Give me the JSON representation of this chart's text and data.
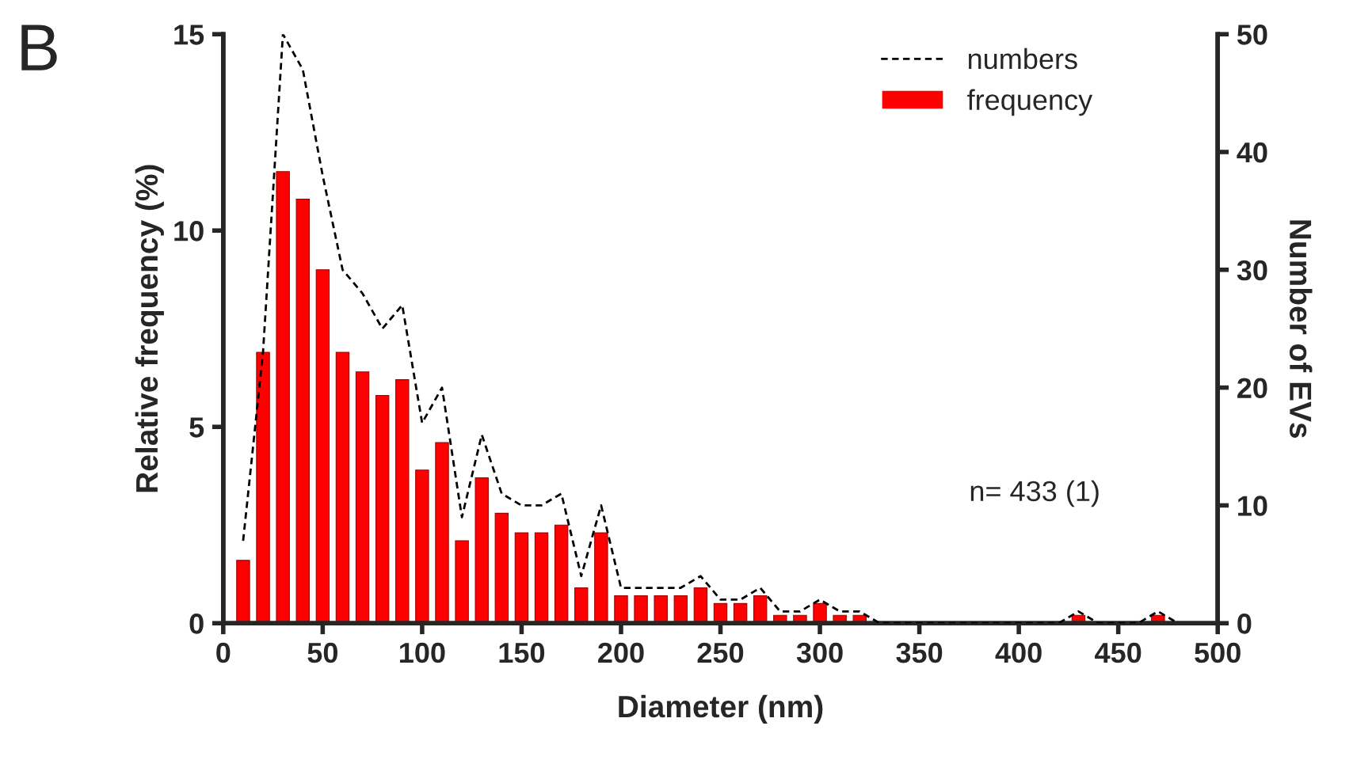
{
  "chart_data": {
    "type": "bar",
    "xlabel": "Diameter (nm)",
    "ylabel": "Relative frequency (%)",
    "y2label": "Number of EVs",
    "annotations": [
      "B",
      "n= 433 (1)"
    ],
    "series": [
      {
        "name": "frequency",
        "color": "#ff0000",
        "x": [
          10,
          20,
          30,
          40,
          50,
          60,
          70,
          80,
          90,
          100,
          110,
          120,
          130,
          140,
          150,
          160,
          170,
          180,
          190,
          200,
          210,
          220,
          230,
          240,
          250,
          260,
          270,
          280,
          290,
          300,
          310,
          320,
          430,
          470
        ],
        "values": [
          1.6,
          6.9,
          11.5,
          10.8,
          9.0,
          6.9,
          6.4,
          5.8,
          6.2,
          3.9,
          4.6,
          2.1,
          3.7,
          2.8,
          2.3,
          2.3,
          2.5,
          0.9,
          2.3,
          0.7,
          0.7,
          0.7,
          0.7,
          0.9,
          0.5,
          0.5,
          0.7,
          0.2,
          0.2,
          0.5,
          0.2,
          0.2,
          0.2,
          0.2
        ]
      },
      {
        "name": "numbers",
        "type": "line",
        "axis": "y2",
        "color": "#000000",
        "line_style": "dashed",
        "x": [
          10,
          20,
          30,
          40,
          50,
          60,
          70,
          80,
          90,
          100,
          110,
          120,
          130,
          140,
          150,
          160,
          170,
          180,
          190,
          200,
          210,
          220,
          230,
          240,
          250,
          260,
          270,
          280,
          290,
          300,
          310,
          320,
          330,
          420,
          430,
          440,
          460,
          470,
          480
        ],
        "values": [
          7,
          23,
          50,
          47,
          38,
          30,
          28,
          25,
          27,
          17,
          20,
          9,
          16,
          11,
          10,
          10,
          11,
          4,
          10,
          3,
          3,
          3,
          3,
          4,
          2,
          2,
          3,
          1,
          1,
          2,
          1,
          1,
          0,
          0,
          1,
          0,
          0,
          1,
          0
        ]
      }
    ],
    "xlim": [
      0,
      500
    ],
    "xticks": [
      0,
      50,
      100,
      150,
      200,
      250,
      300,
      350,
      400,
      450,
      500
    ],
    "ylim": [
      0,
      15
    ],
    "yticks": [
      0,
      5,
      10,
      15
    ],
    "y2lim": [
      0,
      50
    ],
    "y2ticks": [
      0,
      10,
      20,
      30,
      40,
      50
    ],
    "legend": "top right",
    "grid": false
  }
}
